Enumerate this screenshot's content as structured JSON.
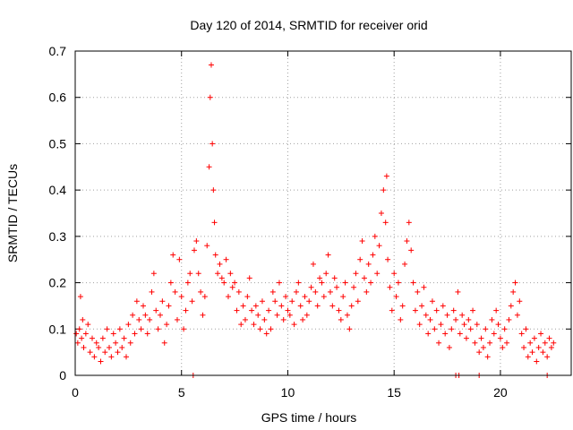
{
  "chart_data": {
    "type": "scatter",
    "title": "Day 120 of 2014, SRMTID for receiver orid",
    "xlabel": "GPS time / hours",
    "ylabel": "SRMTID / TECUs",
    "xlim": [
      0,
      23.33
    ],
    "ylim": [
      0,
      0.7
    ],
    "x_ticks": [
      0,
      5,
      10,
      15,
      20
    ],
    "x_tick_labels": [
      "0",
      "5",
      "10",
      "15",
      "20"
    ],
    "y_ticks": [
      0,
      0.1,
      0.2,
      0.3,
      0.4,
      0.5,
      0.6,
      0.7
    ],
    "y_tick_labels": [
      "0",
      "0.1",
      "0.2",
      "0.3",
      "0.4",
      "0.5",
      "0.6",
      "0.7"
    ],
    "grid": true,
    "marker": "+",
    "color": "#ff0000",
    "series": [
      {
        "name": "SRMTID",
        "points": [
          [
            0.05,
            0.09
          ],
          [
            0.12,
            0.07
          ],
          [
            0.2,
            0.1
          ],
          [
            0.25,
            0.17
          ],
          [
            0.3,
            0.08
          ],
          [
            0.35,
            0.12
          ],
          [
            0.4,
            0.06
          ],
          [
            0.5,
            0.09
          ],
          [
            0.6,
            0.11
          ],
          [
            0.7,
            0.05
          ],
          [
            0.8,
            0.08
          ],
          [
            0.9,
            0.04
          ],
          [
            1.0,
            0.07
          ],
          [
            1.1,
            0.06
          ],
          [
            1.2,
            0.03
          ],
          [
            1.3,
            0.08
          ],
          [
            1.4,
            0.05
          ],
          [
            1.5,
            0.1
          ],
          [
            1.6,
            0.06
          ],
          [
            1.7,
            0.04
          ],
          [
            1.8,
            0.09
          ],
          [
            1.9,
            0.07
          ],
          [
            2.0,
            0.05
          ],
          [
            2.1,
            0.1
          ],
          [
            2.2,
            0.06
          ],
          [
            2.3,
            0.08
          ],
          [
            2.4,
            0.04
          ],
          [
            2.5,
            0.11
          ],
          [
            2.6,
            0.07
          ],
          [
            2.7,
            0.13
          ],
          [
            2.8,
            0.09
          ],
          [
            2.9,
            0.16
          ],
          [
            3.0,
            0.12
          ],
          [
            3.1,
            0.1
          ],
          [
            3.2,
            0.15
          ],
          [
            3.3,
            0.13
          ],
          [
            3.4,
            0.09
          ],
          [
            3.5,
            0.12
          ],
          [
            3.6,
            0.18
          ],
          [
            3.7,
            0.22
          ],
          [
            3.8,
            0.14
          ],
          [
            3.9,
            0.1
          ],
          [
            4.0,
            0.13
          ],
          [
            4.1,
            0.16
          ],
          [
            4.2,
            0.07
          ],
          [
            4.3,
            0.11
          ],
          [
            4.4,
            0.15
          ],
          [
            4.5,
            0.2
          ],
          [
            4.6,
            0.26
          ],
          [
            4.7,
            0.18
          ],
          [
            4.8,
            0.12
          ],
          [
            4.9,
            0.25
          ],
          [
            5.0,
            0.17
          ],
          [
            5.1,
            0.1
          ],
          [
            5.2,
            0.14
          ],
          [
            5.3,
            0.2
          ],
          [
            5.4,
            0.22
          ],
          [
            5.5,
            0.16
          ],
          [
            5.6,
            0.27
          ],
          [
            5.7,
            0.29
          ],
          [
            5.8,
            0.22
          ],
          [
            5.9,
            0.18
          ],
          [
            6.0,
            0.13
          ],
          [
            6.1,
            0.17
          ],
          [
            6.2,
            0.28
          ],
          [
            6.3,
            0.45
          ],
          [
            6.35,
            0.6
          ],
          [
            6.4,
            0.67
          ],
          [
            6.45,
            0.5
          ],
          [
            6.5,
            0.4
          ],
          [
            6.55,
            0.33
          ],
          [
            6.6,
            0.26
          ],
          [
            6.7,
            0.22
          ],
          [
            6.8,
            0.24
          ],
          [
            6.9,
            0.21
          ],
          [
            7.0,
            0.2
          ],
          [
            7.1,
            0.25
          ],
          [
            7.2,
            0.17
          ],
          [
            7.3,
            0.22
          ],
          [
            7.4,
            0.19
          ],
          [
            7.5,
            0.2
          ],
          [
            7.6,
            0.14
          ],
          [
            7.7,
            0.18
          ],
          [
            7.8,
            0.11
          ],
          [
            7.9,
            0.15
          ],
          [
            8.0,
            0.12
          ],
          [
            8.1,
            0.17
          ],
          [
            8.2,
            0.21
          ],
          [
            8.3,
            0.14
          ],
          [
            8.4,
            0.11
          ],
          [
            8.5,
            0.15
          ],
          [
            8.6,
            0.13
          ],
          [
            8.7,
            0.1
          ],
          [
            8.8,
            0.16
          ],
          [
            8.9,
            0.12
          ],
          [
            9.0,
            0.09
          ],
          [
            9.1,
            0.14
          ],
          [
            9.2,
            0.1
          ],
          [
            9.3,
            0.18
          ],
          [
            9.4,
            0.16
          ],
          [
            9.5,
            0.13
          ],
          [
            9.6,
            0.2
          ],
          [
            9.7,
            0.15
          ],
          [
            9.8,
            0.12
          ],
          [
            9.9,
            0.17
          ],
          [
            10.0,
            0.14
          ],
          [
            10.1,
            0.13
          ],
          [
            10.2,
            0.16
          ],
          [
            10.3,
            0.11
          ],
          [
            10.4,
            0.18
          ],
          [
            10.5,
            0.2
          ],
          [
            10.6,
            0.15
          ],
          [
            10.7,
            0.12
          ],
          [
            10.8,
            0.17
          ],
          [
            10.9,
            0.13
          ],
          [
            11.0,
            0.16
          ],
          [
            11.1,
            0.19
          ],
          [
            11.2,
            0.24
          ],
          [
            11.3,
            0.18
          ],
          [
            11.4,
            0.15
          ],
          [
            11.5,
            0.21
          ],
          [
            11.6,
            0.2
          ],
          [
            11.7,
            0.17
          ],
          [
            11.8,
            0.22
          ],
          [
            11.9,
            0.26
          ],
          [
            12.0,
            0.18
          ],
          [
            12.1,
            0.15
          ],
          [
            12.2,
            0.21
          ],
          [
            12.3,
            0.19
          ],
          [
            12.4,
            0.14
          ],
          [
            12.5,
            0.12
          ],
          [
            12.6,
            0.17
          ],
          [
            12.7,
            0.2
          ],
          [
            12.8,
            0.13
          ],
          [
            12.9,
            0.1
          ],
          [
            13.0,
            0.15
          ],
          [
            13.1,
            0.19
          ],
          [
            13.2,
            0.22
          ],
          [
            13.3,
            0.16
          ],
          [
            13.4,
            0.25
          ],
          [
            13.5,
            0.29
          ],
          [
            13.6,
            0.21
          ],
          [
            13.7,
            0.18
          ],
          [
            13.8,
            0.24
          ],
          [
            13.9,
            0.2
          ],
          [
            14.0,
            0.26
          ],
          [
            14.1,
            0.3
          ],
          [
            14.2,
            0.22
          ],
          [
            14.3,
            0.28
          ],
          [
            14.4,
            0.35
          ],
          [
            14.5,
            0.4
          ],
          [
            14.6,
            0.33
          ],
          [
            14.65,
            0.43
          ],
          [
            14.7,
            0.25
          ],
          [
            14.8,
            0.19
          ],
          [
            14.9,
            0.14
          ],
          [
            15.0,
            0.22
          ],
          [
            15.1,
            0.17
          ],
          [
            15.2,
            0.2
          ],
          [
            15.3,
            0.12
          ],
          [
            15.4,
            0.15
          ],
          [
            15.5,
            0.24
          ],
          [
            15.6,
            0.29
          ],
          [
            15.7,
            0.33
          ],
          [
            15.8,
            0.27
          ],
          [
            15.9,
            0.2
          ],
          [
            16.0,
            0.14
          ],
          [
            16.1,
            0.18
          ],
          [
            16.2,
            0.11
          ],
          [
            16.3,
            0.15
          ],
          [
            16.4,
            0.19
          ],
          [
            16.5,
            0.13
          ],
          [
            16.6,
            0.09
          ],
          [
            16.7,
            0.12
          ],
          [
            16.8,
            0.16
          ],
          [
            16.9,
            0.1
          ],
          [
            17.0,
            0.14
          ],
          [
            17.1,
            0.07
          ],
          [
            17.2,
            0.11
          ],
          [
            17.3,
            0.15
          ],
          [
            17.4,
            0.09
          ],
          [
            17.5,
            0.13
          ],
          [
            17.6,
            0.06
          ],
          [
            17.7,
            0.1
          ],
          [
            17.8,
            0.14
          ],
          [
            17.9,
            0.12
          ],
          [
            18.0,
            0.18
          ],
          [
            18.1,
            0.09
          ],
          [
            18.2,
            0.13
          ],
          [
            18.3,
            0.11
          ],
          [
            18.4,
            0.08
          ],
          [
            18.5,
            0.12
          ],
          [
            18.6,
            0.1
          ],
          [
            18.7,
            0.14
          ],
          [
            18.8,
            0.07
          ],
          [
            18.9,
            0.11
          ],
          [
            19.0,
            0.05
          ],
          [
            19.1,
            0.08
          ],
          [
            19.2,
            0.06
          ],
          [
            19.3,
            0.1
          ],
          [
            19.4,
            0.04
          ],
          [
            19.5,
            0.07
          ],
          [
            19.6,
            0.12
          ],
          [
            19.7,
            0.09
          ],
          [
            19.8,
            0.14
          ],
          [
            19.9,
            0.11
          ],
          [
            20.0,
            0.08
          ],
          [
            20.1,
            0.06
          ],
          [
            20.2,
            0.1
          ],
          [
            20.3,
            0.07
          ],
          [
            20.4,
            0.12
          ],
          [
            20.5,
            0.15
          ],
          [
            20.6,
            0.18
          ],
          [
            20.7,
            0.2
          ],
          [
            20.8,
            0.13
          ],
          [
            20.9,
            0.16
          ],
          [
            21.0,
            0.09
          ],
          [
            21.1,
            0.06
          ],
          [
            21.2,
            0.1
          ],
          [
            21.3,
            0.04
          ],
          [
            21.4,
            0.07
          ],
          [
            21.5,
            0.05
          ],
          [
            21.6,
            0.08
          ],
          [
            21.7,
            0.03
          ],
          [
            21.8,
            0.06
          ],
          [
            21.9,
            0.09
          ],
          [
            22.0,
            0.05
          ],
          [
            22.1,
            0.07
          ],
          [
            22.2,
            0.04
          ],
          [
            22.3,
            0.08
          ],
          [
            22.4,
            0.06
          ],
          [
            22.5,
            0.07
          ],
          [
            5.55,
            0.0
          ],
          [
            17.9,
            0.0
          ],
          [
            18.05,
            0.0
          ],
          [
            19.0,
            0.0
          ],
          [
            22.2,
            0.0
          ]
        ]
      }
    ]
  }
}
